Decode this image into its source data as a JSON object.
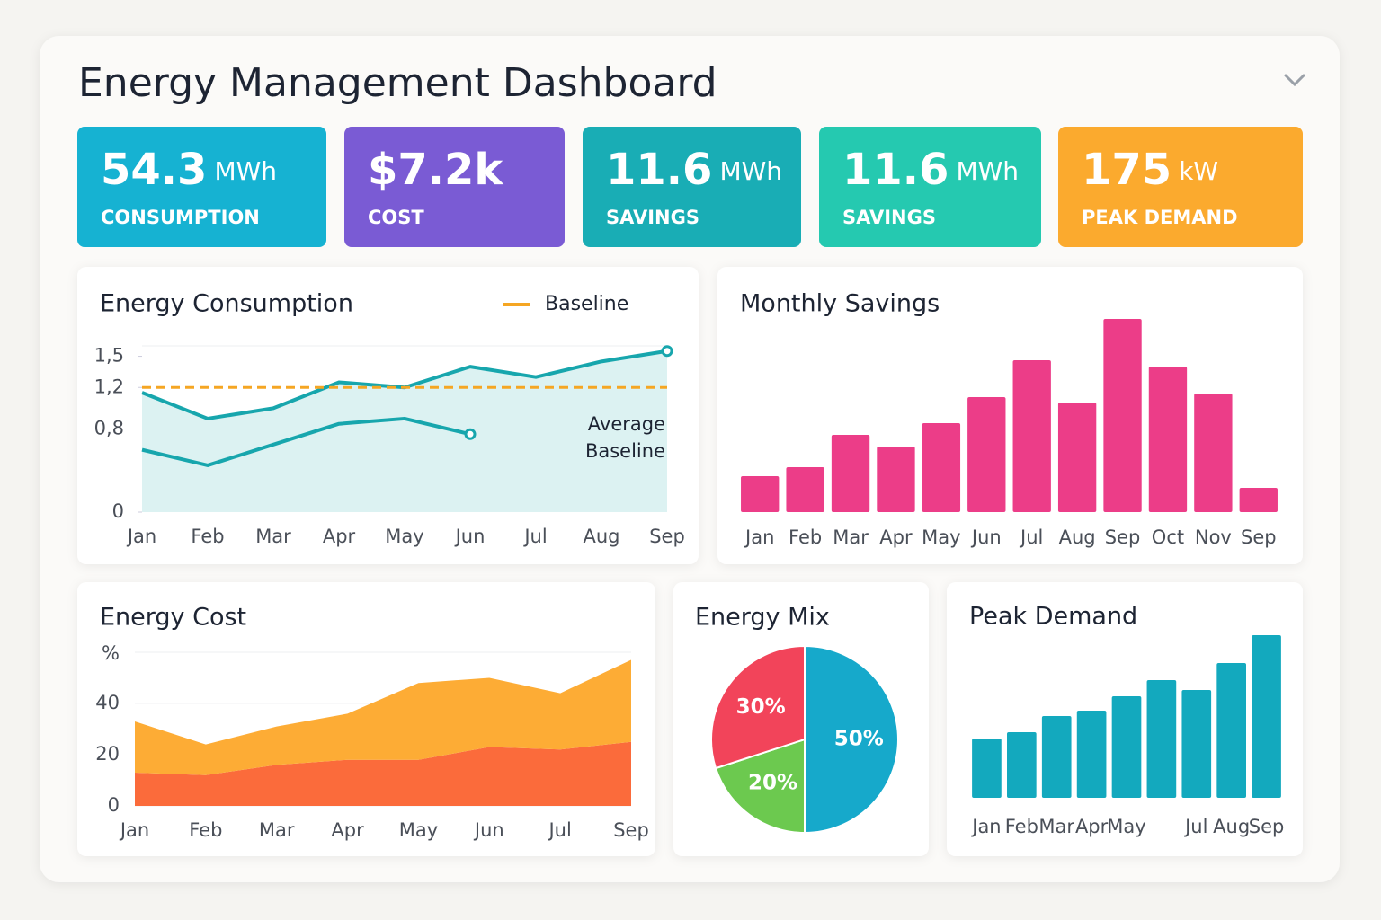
{
  "header": {
    "title": "Energy Management Dashboard"
  },
  "kpis": [
    {
      "value": 54.3,
      "unit": "MWh",
      "label": "CONSUMPTION",
      "color": "#16b2d2"
    },
    {
      "value": "$7.2k",
      "label": "COST",
      "color": "#7a5bd4"
    },
    {
      "value": 11.6,
      "unit": "MWh",
      "label": "SAVINGS",
      "color": "#19adb5"
    },
    {
      "value": 11.6,
      "unit": "MWh",
      "label": "SAVINGS",
      "color": "#25c9b0"
    },
    {
      "value": 175,
      "unit": "kW",
      "label": "PEAK DEMAND",
      "color": "#fbaa2e"
    }
  ],
  "chart_data": [
    {
      "type": "line",
      "title": "Energy Consumption",
      "categories": [
        "Jan",
        "Feb",
        "Mar",
        "Apr",
        "May",
        "Jun",
        "Jul",
        "Aug",
        "Sep"
      ],
      "series": [
        {
          "color": "#17a6ad",
          "area": true,
          "values": [
            1.15,
            0.9,
            1.0,
            1.25,
            1.2,
            1.4,
            1.3,
            1.45,
            1.55
          ]
        },
        {
          "color": "#17a6ad",
          "values": [
            0.6,
            0.45,
            0.65,
            0.85,
            0.9,
            0.75,
            null,
            null,
            null
          ]
        }
      ],
      "baseline": {
        "name": "Baseline",
        "value": 1.2,
        "color": "#f5a623"
      },
      "annotation_lines": [
        "Average",
        "Baseline"
      ],
      "ylim": [
        0,
        1.6
      ],
      "yticks": [
        0,
        {
          "value": 0.8,
          "label": "0,8"
        },
        {
          "value": 1.2,
          "label": "1,2"
        },
        {
          "value": 1.5,
          "label": "1,5"
        }
      ]
    },
    {
      "type": "bar",
      "title": "Monthly Savings",
      "categories": [
        "Jan",
        "Feb",
        "Mar",
        "Apr",
        "May",
        "Jun",
        "Jul",
        "Aug",
        "Sep",
        "Oct",
        "Nov",
        "Sep"
      ],
      "values": [
        40,
        50,
        86,
        73,
        99,
        128,
        169,
        122,
        215,
        162,
        132,
        27
      ],
      "color": "#ec3d88",
      "ylim": [
        0,
        220
      ]
    },
    {
      "type": "stacked_area",
      "title": "Energy Cost",
      "y_label": "%",
      "categories": [
        "Jan",
        "Feb",
        "Mar",
        "Apr",
        "May",
        "Jun",
        "Jul",
        "Sep"
      ],
      "series": [
        {
          "color": "#fb6b3b",
          "values": [
            13,
            12,
            16,
            18,
            18,
            23,
            22,
            25
          ]
        },
        {
          "color": "#fdac35",
          "values": [
            20,
            12,
            15,
            18,
            30,
            27,
            22,
            32
          ]
        }
      ],
      "ylim": [
        0,
        60
      ],
      "yticks": [
        0,
        20,
        40
      ]
    },
    {
      "type": "pie",
      "title": "Energy Mix",
      "values": [
        50,
        20,
        30
      ],
      "value_labels": [
        "50%",
        "20%",
        "30%"
      ],
      "colors": [
        "#16a9cb",
        "#6cc94f",
        "#f2445a"
      ]
    },
    {
      "type": "bar",
      "title": "Peak Demand",
      "categories": [
        "Jan",
        "Feb",
        "Mar",
        "Apr",
        "May",
        null,
        "Jul",
        "Aug",
        "Sep"
      ],
      "values": [
        66,
        73,
        91,
        97,
        113,
        131,
        120,
        150,
        181
      ],
      "color": "#13a9be",
      "ylim": [
        0,
        190
      ]
    }
  ]
}
